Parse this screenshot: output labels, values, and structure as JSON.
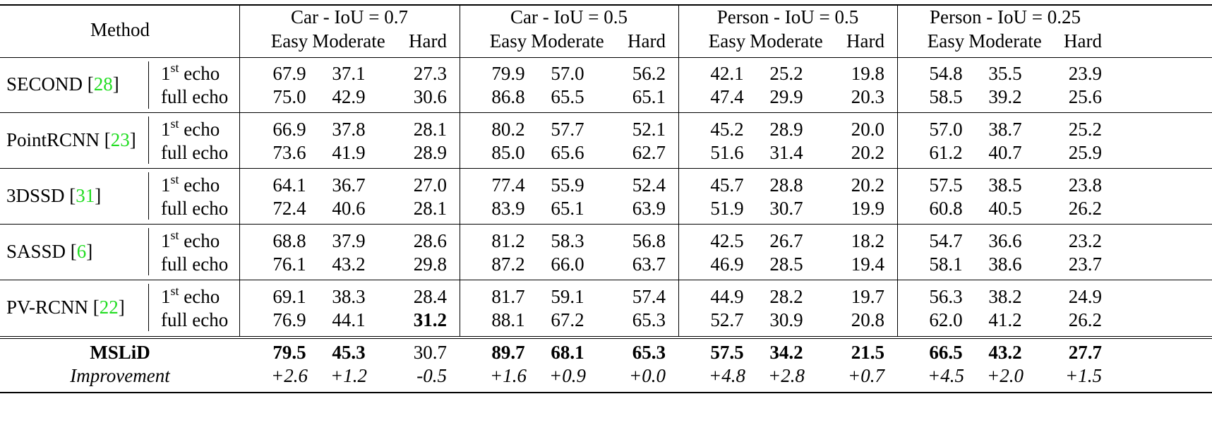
{
  "header": {
    "method": "Method",
    "groups": [
      "Car - IoU = 0.7",
      "Car - IoU = 0.5",
      "Person - IoU = 0.5",
      "Person - IoU = 0.25"
    ],
    "difficulties": [
      "Easy",
      "Moderate",
      "Hard"
    ]
  },
  "echo": {
    "first_base": "1",
    "first_sup": "st",
    "first_word": "echo",
    "full": "full echo"
  },
  "methods": [
    {
      "name": "SECOND",
      "ref": "28",
      "first": [
        "67.9",
        "37.1",
        "27.3",
        "79.9",
        "57.0",
        "56.2",
        "42.1",
        "25.2",
        "19.8",
        "54.8",
        "35.5",
        "23.9"
      ],
      "full": [
        "75.0",
        "42.9",
        "30.6",
        "86.8",
        "65.5",
        "65.1",
        "47.4",
        "29.9",
        "20.3",
        "58.5",
        "39.2",
        "25.6"
      ]
    },
    {
      "name": "PointRCNN",
      "ref": "23",
      "first": [
        "66.9",
        "37.8",
        "28.1",
        "80.2",
        "57.7",
        "52.1",
        "45.2",
        "28.9",
        "20.0",
        "57.0",
        "38.7",
        "25.2"
      ],
      "full": [
        "73.6",
        "41.9",
        "28.9",
        "85.0",
        "65.6",
        "62.7",
        "51.6",
        "31.4",
        "20.2",
        "61.2",
        "40.7",
        "25.9"
      ]
    },
    {
      "name": "3DSSD",
      "ref": "31",
      "first": [
        "64.1",
        "36.7",
        "27.0",
        "77.4",
        "55.9",
        "52.4",
        "45.7",
        "28.8",
        "20.2",
        "57.5",
        "38.5",
        "23.8"
      ],
      "full": [
        "72.4",
        "40.6",
        "28.1",
        "83.9",
        "65.1",
        "63.9",
        "51.9",
        "30.7",
        "19.9",
        "60.8",
        "40.5",
        "26.2"
      ]
    },
    {
      "name": "SASSD",
      "ref": "6",
      "first": [
        "68.8",
        "37.9",
        "28.6",
        "81.2",
        "58.3",
        "56.8",
        "42.5",
        "26.7",
        "18.2",
        "54.7",
        "36.6",
        "23.2"
      ],
      "full": [
        "76.1",
        "43.2",
        "29.8",
        "87.2",
        "66.0",
        "63.7",
        "46.9",
        "28.5",
        "19.4",
        "58.1",
        "38.6",
        "23.7"
      ]
    },
    {
      "name": "PV-RCNN",
      "ref": "22",
      "first": [
        "69.1",
        "38.3",
        "28.4",
        "81.7",
        "59.1",
        "57.4",
        "44.9",
        "28.2",
        "19.7",
        "56.3",
        "38.2",
        "24.9"
      ],
      "full": [
        "76.9",
        "44.1",
        "31.2",
        "88.1",
        "67.2",
        "65.3",
        "52.7",
        "30.9",
        "20.8",
        "62.0",
        "41.2",
        "26.2"
      ]
    }
  ],
  "bold_cells": [
    {
      "method": 4,
      "row": "full",
      "col": 2
    }
  ],
  "mslid": {
    "name": "MSLiD",
    "values": [
      "79.5",
      "45.3",
      "30.7",
      "89.7",
      "68.1",
      "65.3",
      "57.5",
      "34.2",
      "21.5",
      "66.5",
      "43.2",
      "27.7"
    ],
    "bold": [
      true,
      true,
      false,
      true,
      true,
      true,
      true,
      true,
      true,
      true,
      true,
      true
    ]
  },
  "improvement": {
    "label": "Improvement",
    "values": [
      "+2.6",
      "+1.2",
      "-0.5",
      "+1.6",
      "+0.9",
      "+0.0",
      "+4.8",
      "+2.8",
      "+0.7",
      "+4.5",
      "+2.0",
      "+1.5"
    ]
  },
  "colors": {
    "text": "#000000",
    "citation": "#22dd22",
    "background": "#ffffff"
  }
}
